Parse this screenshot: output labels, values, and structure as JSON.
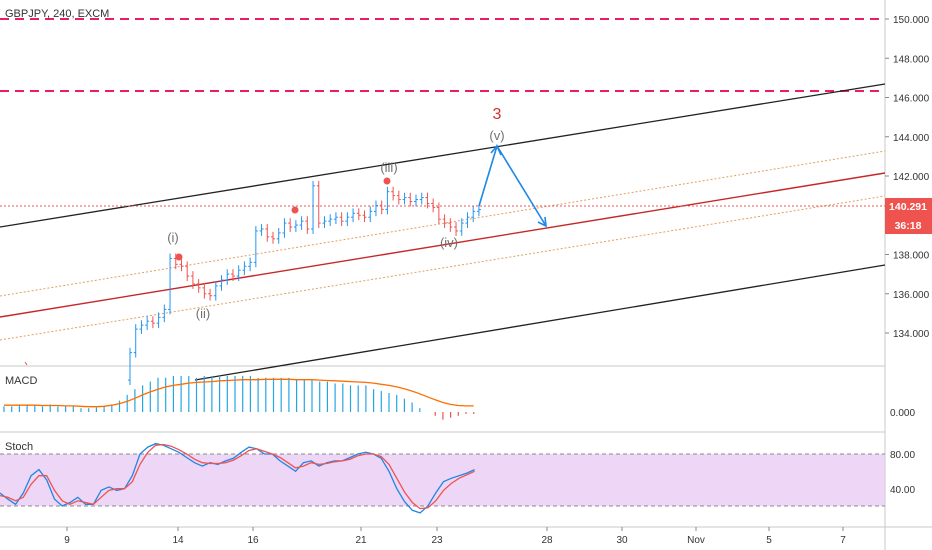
{
  "header": {
    "title": "GBPJPY, 240, EXCM"
  },
  "price_axis": {
    "ticks": [
      "150.000",
      "148.000",
      "146.000",
      "144.000",
      "142.000",
      "140.000",
      "138.000",
      "136.000",
      "134.000"
    ],
    "tick_values": [
      150,
      148,
      146,
      144,
      142,
      140,
      138,
      136,
      134
    ],
    "last_price": "140.291",
    "countdown": "36:18"
  },
  "time_axis": {
    "ticks": [
      "9",
      "14",
      "16",
      "21",
      "23",
      "28",
      "30",
      "Nov",
      "5",
      "7"
    ]
  },
  "wave_labels": {
    "w_i": "(i)",
    "w_ii": "(ii)",
    "w_iii": "(iii)",
    "w_iv": "(iv)",
    "w_v": "(v)",
    "w_3": "3"
  },
  "macd": {
    "title": "MACD",
    "tick": "0.000"
  },
  "stoch": {
    "title": "Stoch",
    "ticks": [
      "80.00",
      "40.00"
    ]
  },
  "colors": {
    "up": "#26a69a",
    "up_chart": "#2196f3",
    "down": "#ef5350",
    "resistance": "#e91e63",
    "channel": "#000000",
    "midline": "#b71c1c",
    "projection": "#1e88e5",
    "stoch_band": "#e1bee7",
    "price_tag": "#ef5350"
  },
  "chart_data": [
    {
      "type": "candlestick",
      "title": "GBPJPY, 240, EXCM",
      "ylim": [
        132.4,
        151.0
      ],
      "y_ticks": [
        150,
        148,
        146,
        144,
        142,
        140,
        138,
        136,
        134
      ],
      "x_ticks": [
        "9",
        "14",
        "16",
        "21",
        "23",
        "28",
        "30",
        "Nov",
        "5",
        "7"
      ],
      "last_price": 140.291,
      "closes": [
        133.0,
        134.2,
        134.4,
        134.6,
        134.5,
        134.8,
        135.2,
        137.8,
        137.5,
        137.4,
        136.9,
        136.5,
        136.3,
        136.0,
        135.9,
        136.4,
        136.7,
        137.0,
        136.9,
        137.2,
        137.4,
        137.6,
        139.2,
        139.3,
        138.9,
        138.8,
        139.1,
        139.6,
        139.4,
        139.5,
        139.7,
        139.3,
        141.5,
        139.6,
        139.7,
        139.8,
        139.9,
        139.7,
        139.9,
        140.1,
        140.0,
        139.9,
        140.2,
        140.5,
        140.3,
        141.2,
        141.0,
        140.8,
        140.9,
        140.7,
        140.8,
        140.9,
        140.6,
        140.4,
        139.8,
        139.6,
        139.4,
        139.2,
        139.6,
        139.9,
        140.2,
        140.291
      ],
      "horizontal_levels": [
        149.85,
        146.2
      ],
      "wave_labels": [
        {
          "label": "(i)",
          "value": 138.0
        },
        {
          "label": "(ii)",
          "value": 135.0
        },
        {
          "label": "(iii)",
          "value": 142.1
        },
        {
          "label": "(iv)",
          "value": 138.4
        },
        {
          "label": "(v)",
          "value": 143.9
        },
        {
          "label": "3",
          "value": 145.0
        }
      ],
      "projection": [
        140.3,
        143.6,
        139.0
      ]
    },
    {
      "type": "bar",
      "title": "MACD",
      "y_ticks": [
        "0.000"
      ],
      "histogram": [
        0.15,
        0.15,
        0.2,
        0.2,
        0.2,
        0.15,
        0.2,
        0.15,
        0.15,
        0.15,
        0.1,
        0.1,
        0.12,
        0.15,
        0.2,
        0.3,
        0.45,
        0.6,
        0.7,
        0.8,
        0.9,
        0.9,
        0.95,
        0.95,
        0.95,
        0.9,
        0.95,
        0.95,
        0.95,
        0.95,
        0.95,
        0.95,
        0.95,
        0.9,
        0.9,
        0.9,
        0.9,
        0.9,
        0.85,
        0.85,
        0.85,
        0.8,
        0.8,
        0.75,
        0.75,
        0.7,
        0.7,
        0.7,
        0.6,
        0.55,
        0.5,
        0.45,
        0.35,
        0.25,
        0.1,
        0,
        -0.1,
        -0.2,
        -0.15,
        -0.1,
        -0.05,
        -0.05
      ],
      "signal": [
        0.18,
        0.18,
        0.18,
        0.18,
        0.18,
        0.17,
        0.17,
        0.17,
        0.16,
        0.16,
        0.15,
        0.14,
        0.14,
        0.15,
        0.18,
        0.22,
        0.28,
        0.36,
        0.45,
        0.53,
        0.6,
        0.66,
        0.7,
        0.73,
        0.76,
        0.78,
        0.79,
        0.8,
        0.82,
        0.83,
        0.84,
        0.85,
        0.85,
        0.85,
        0.86,
        0.86,
        0.86,
        0.86,
        0.85,
        0.85,
        0.85,
        0.84,
        0.83,
        0.82,
        0.81,
        0.8,
        0.79,
        0.78,
        0.76,
        0.73,
        0.7,
        0.66,
        0.61,
        0.55,
        0.48,
        0.4,
        0.32,
        0.25,
        0.2,
        0.17,
        0.16,
        0.16
      ]
    },
    {
      "type": "line",
      "title": "Stoch",
      "ylim": [
        0,
        100
      ],
      "y_ticks": [
        80,
        40
      ],
      "band": [
        20,
        80
      ],
      "series": [
        {
          "values": [
            35,
            28,
            22,
            35,
            55,
            62,
            50,
            28,
            20,
            24,
            30,
            22,
            22,
            38,
            42,
            38,
            40,
            55,
            80,
            88,
            92,
            90,
            86,
            82,
            76,
            70,
            66,
            70,
            68,
            72,
            75,
            82,
            88,
            86,
            80,
            80,
            72,
            66,
            60,
            70,
            72,
            66,
            70,
            72,
            72,
            76,
            80,
            82,
            80,
            75,
            60,
            40,
            25,
            15,
            12,
            20,
            35,
            48,
            52,
            55,
            58,
            62
          ]
        },
        {
          "values": [
            32,
            30,
            26,
            30,
            45,
            55,
            55,
            38,
            26,
            22,
            26,
            24,
            22,
            30,
            38,
            40,
            40,
            48,
            68,
            82,
            90,
            91,
            89,
            85,
            80,
            74,
            70,
            69,
            69,
            70,
            73,
            78,
            84,
            86,
            83,
            80,
            76,
            70,
            64,
            66,
            70,
            68,
            69,
            71,
            72,
            74,
            78,
            80,
            80,
            77,
            68,
            52,
            36,
            24,
            17,
            18,
            26,
            38,
            46,
            52,
            56,
            60
          ]
        }
      ]
    }
  ]
}
